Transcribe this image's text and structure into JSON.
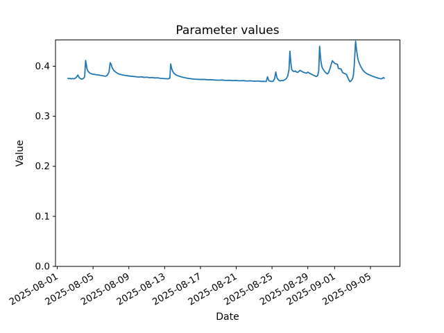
{
  "figure": {
    "background": "#ffffff",
    "spine_color": "#000000",
    "tick_color": "#000000",
    "text_color": "#000000"
  },
  "chart_data": {
    "type": "line",
    "title": "Parameter values",
    "xlabel": "Date",
    "ylabel": "Value",
    "grid": false,
    "legend": "none",
    "x_axis": {
      "unit": "days since 2025-08-01",
      "lim": [
        -0.2,
        38.3
      ],
      "ticks": [
        {
          "offset": 0,
          "label": "2025-08-01"
        },
        {
          "offset": 4,
          "label": "2025-08-05"
        },
        {
          "offset": 8,
          "label": "2025-08-09"
        },
        {
          "offset": 12,
          "label": "2025-08-13"
        },
        {
          "offset": 16,
          "label": "2025-08-17"
        },
        {
          "offset": 20,
          "label": "2025-08-21"
        },
        {
          "offset": 24,
          "label": "2025-08-25"
        },
        {
          "offset": 28,
          "label": "2025-08-29"
        },
        {
          "offset": 31,
          "label": "2025-09-01"
        },
        {
          "offset": 35,
          "label": "2025-09-05"
        }
      ],
      "tick_rotation_deg": 30
    },
    "y_axis": {
      "lim": [
        0,
        0.4525
      ],
      "ticks": [
        {
          "value": 0.0,
          "label": "0.0"
        },
        {
          "value": 0.1,
          "label": "0.1"
        },
        {
          "value": 0.2,
          "label": "0.2"
        },
        {
          "value": 0.3,
          "label": "0.3"
        },
        {
          "value": 0.4,
          "label": "0.4"
        }
      ]
    },
    "series": [
      {
        "name": "Parameter values",
        "color": "#1f77b4",
        "line_width": 1.8,
        "points": [
          [
            1.2,
            0.376
          ],
          [
            1.3,
            0.3752
          ],
          [
            1.42,
            0.3758
          ],
          [
            1.55,
            0.3747
          ],
          [
            1.7,
            0.3755
          ],
          [
            1.85,
            0.3749
          ],
          [
            2.0,
            0.376
          ],
          [
            2.1,
            0.3772
          ],
          [
            2.2,
            0.3795
          ],
          [
            2.3,
            0.3825
          ],
          [
            2.42,
            0.378
          ],
          [
            2.55,
            0.3757
          ],
          [
            2.7,
            0.3742
          ],
          [
            2.85,
            0.3749
          ],
          [
            3.0,
            0.3768
          ],
          [
            3.06,
            0.38
          ],
          [
            3.12,
            0.398
          ],
          [
            3.17,
            0.4115
          ],
          [
            3.24,
            0.404
          ],
          [
            3.32,
            0.3948
          ],
          [
            3.45,
            0.3898
          ],
          [
            3.6,
            0.3866
          ],
          [
            3.8,
            0.3849
          ],
          [
            4.0,
            0.384
          ],
          [
            4.25,
            0.3833
          ],
          [
            4.5,
            0.3827
          ],
          [
            4.75,
            0.382
          ],
          [
            5.0,
            0.3812
          ],
          [
            5.2,
            0.3806
          ],
          [
            5.4,
            0.38
          ],
          [
            5.6,
            0.382
          ],
          [
            5.78,
            0.3885
          ],
          [
            5.92,
            0.407
          ],
          [
            6.02,
            0.4038
          ],
          [
            6.12,
            0.3978
          ],
          [
            6.3,
            0.392
          ],
          [
            6.5,
            0.3886
          ],
          [
            6.75,
            0.3856
          ],
          [
            7.0,
            0.3838
          ],
          [
            7.3,
            0.3826
          ],
          [
            7.6,
            0.3816
          ],
          [
            7.9,
            0.3808
          ],
          [
            8.2,
            0.3801
          ],
          [
            8.5,
            0.3796
          ],
          [
            8.8,
            0.379
          ],
          [
            9.1,
            0.3783
          ],
          [
            9.4,
            0.3789
          ],
          [
            9.7,
            0.3777
          ],
          [
            10.0,
            0.3781
          ],
          [
            10.3,
            0.3771
          ],
          [
            10.6,
            0.3775
          ],
          [
            10.9,
            0.3765
          ],
          [
            11.2,
            0.3769
          ],
          [
            11.5,
            0.3759
          ],
          [
            11.8,
            0.3755
          ],
          [
            12.1,
            0.3751
          ],
          [
            12.4,
            0.3749
          ],
          [
            12.58,
            0.3762
          ],
          [
            12.68,
            0.4046
          ],
          [
            12.78,
            0.3958
          ],
          [
            12.9,
            0.3898
          ],
          [
            13.05,
            0.3858
          ],
          [
            13.25,
            0.3828
          ],
          [
            13.5,
            0.3808
          ],
          [
            13.75,
            0.3794
          ],
          [
            14.05,
            0.3779
          ],
          [
            14.35,
            0.3767
          ],
          [
            14.65,
            0.3757
          ],
          [
            14.95,
            0.3749
          ],
          [
            15.25,
            0.3743
          ],
          [
            15.6,
            0.3739
          ],
          [
            16.0,
            0.3735
          ],
          [
            16.4,
            0.3737
          ],
          [
            16.8,
            0.3729
          ],
          [
            17.2,
            0.3731
          ],
          [
            17.6,
            0.3725
          ],
          [
            18.0,
            0.3721
          ],
          [
            18.4,
            0.3725
          ],
          [
            18.8,
            0.3717
          ],
          [
            19.2,
            0.3719
          ],
          [
            19.6,
            0.3713
          ],
          [
            20.0,
            0.3715
          ],
          [
            20.4,
            0.3709
          ],
          [
            20.8,
            0.3713
          ],
          [
            21.2,
            0.3705
          ],
          [
            21.6,
            0.3709
          ],
          [
            22.0,
            0.3701
          ],
          [
            22.4,
            0.3705
          ],
          [
            22.8,
            0.3697
          ],
          [
            23.1,
            0.3699
          ],
          [
            23.35,
            0.3694
          ],
          [
            23.5,
            0.379
          ],
          [
            23.64,
            0.3712
          ],
          [
            23.8,
            0.3701
          ],
          [
            24.0,
            0.3695
          ],
          [
            24.15,
            0.3704
          ],
          [
            24.3,
            0.3758
          ],
          [
            24.42,
            0.3885
          ],
          [
            24.55,
            0.3773
          ],
          [
            24.7,
            0.3729
          ],
          [
            24.88,
            0.3706
          ],
          [
            25.05,
            0.3717
          ],
          [
            25.22,
            0.3711
          ],
          [
            25.4,
            0.3727
          ],
          [
            25.6,
            0.3754
          ],
          [
            25.76,
            0.3806
          ],
          [
            25.9,
            0.3936
          ],
          [
            26.0,
            0.43
          ],
          [
            26.1,
            0.4078
          ],
          [
            26.2,
            0.3938
          ],
          [
            26.32,
            0.3908
          ],
          [
            26.45,
            0.3892
          ],
          [
            26.6,
            0.3906
          ],
          [
            26.72,
            0.3886
          ],
          [
            26.85,
            0.3876
          ],
          [
            27.0,
            0.3896
          ],
          [
            27.12,
            0.3918
          ],
          [
            27.28,
            0.3902
          ],
          [
            27.45,
            0.3884
          ],
          [
            27.65,
            0.3872
          ],
          [
            27.85,
            0.386
          ],
          [
            28.0,
            0.3882
          ],
          [
            28.18,
            0.3862
          ],
          [
            28.38,
            0.3844
          ],
          [
            28.6,
            0.3824
          ],
          [
            28.8,
            0.3806
          ],
          [
            28.95,
            0.3794
          ],
          [
            29.1,
            0.3812
          ],
          [
            29.22,
            0.3902
          ],
          [
            29.32,
            0.44
          ],
          [
            29.45,
            0.412
          ],
          [
            29.58,
            0.3988
          ],
          [
            29.72,
            0.3936
          ],
          [
            29.88,
            0.3896
          ],
          [
            30.05,
            0.3862
          ],
          [
            30.18,
            0.3846
          ],
          [
            30.32,
            0.3872
          ],
          [
            30.5,
            0.3962
          ],
          [
            30.62,
            0.4042
          ],
          [
            30.75,
            0.411
          ],
          [
            30.88,
            0.4082
          ],
          [
            31.02,
            0.4056
          ],
          [
            31.18,
            0.4046
          ],
          [
            31.32,
            0.4036
          ],
          [
            31.42,
            0.3956
          ],
          [
            31.58,
            0.395
          ],
          [
            31.72,
            0.3944
          ],
          [
            31.88,
            0.3876
          ],
          [
            32.02,
            0.3862
          ],
          [
            32.18,
            0.385
          ],
          [
            32.32,
            0.3836
          ],
          [
            32.48,
            0.3772
          ],
          [
            32.62,
            0.3716
          ],
          [
            32.72,
            0.369
          ],
          [
            32.86,
            0.3714
          ],
          [
            33.0,
            0.3748
          ],
          [
            33.1,
            0.3822
          ],
          [
            33.2,
            0.404
          ],
          [
            33.34,
            0.45
          ],
          [
            33.46,
            0.431
          ],
          [
            33.6,
            0.4142
          ],
          [
            33.76,
            0.4058
          ],
          [
            33.95,
            0.3982
          ],
          [
            34.15,
            0.3924
          ],
          [
            34.4,
            0.3876
          ],
          [
            34.65,
            0.3847
          ],
          [
            34.9,
            0.3825
          ],
          [
            35.15,
            0.3806
          ],
          [
            35.4,
            0.379
          ],
          [
            35.62,
            0.3776
          ],
          [
            35.82,
            0.3766
          ],
          [
            36.0,
            0.3756
          ],
          [
            36.15,
            0.3748
          ],
          [
            36.3,
            0.3754
          ],
          [
            36.45,
            0.3774
          ],
          [
            36.55,
            0.376
          ]
        ]
      }
    ]
  }
}
